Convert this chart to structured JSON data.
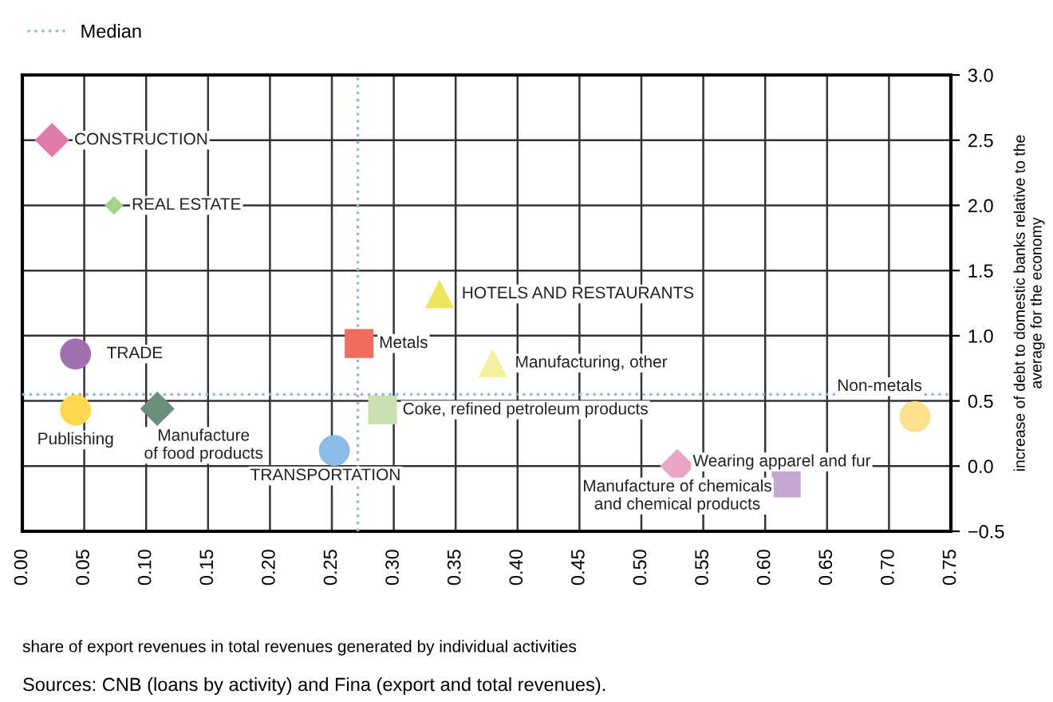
{
  "chart_data": {
    "type": "scatter",
    "xlabel": "share of export revenues in total revenues generated by individual activities",
    "ylabel": "increase of debt to domestic banks relative to the\naverage for the economy",
    "annotations": [
      "Sources: CNB (loans by activity) and Fina (export and total revenues)."
    ],
    "xlim": [
      0,
      0.75
    ],
    "xticks": [
      {
        "value": 0,
        "label": "0.00"
      },
      {
        "value": 0.05,
        "label": "0.05"
      },
      {
        "value": 0.1,
        "label": "0.10"
      },
      {
        "value": 0.15,
        "label": "0.15"
      },
      {
        "value": 0.2,
        "label": "0.20"
      },
      {
        "value": 0.25,
        "label": "0.25"
      },
      {
        "value": 0.3,
        "label": "0.30"
      },
      {
        "value": 0.35,
        "label": "0.35"
      },
      {
        "value": 0.4,
        "label": "0.40"
      },
      {
        "value": 0.45,
        "label": "0.45"
      },
      {
        "value": 0.5,
        "label": "0.50"
      },
      {
        "value": 0.55,
        "label": "0.55"
      },
      {
        "value": 0.6,
        "label": "0.60"
      },
      {
        "value": 0.65,
        "label": "0.65"
      },
      {
        "value": 0.7,
        "label": "0.70"
      },
      {
        "value": 0.75,
        "label": "0.75"
      }
    ],
    "ylim": [
      -0.5,
      3
    ],
    "yticks": [
      {
        "value": -0.5,
        "label": "−0.5"
      },
      {
        "value": 0,
        "label": "0.0"
      },
      {
        "value": 0.5,
        "label": "0.5"
      },
      {
        "value": 1,
        "label": "1.0"
      },
      {
        "value": 1.5,
        "label": "1.5"
      },
      {
        "value": 2,
        "label": "2.0"
      },
      {
        "value": 2.5,
        "label": "2.5"
      },
      {
        "value": 3,
        "label": "3.0"
      }
    ],
    "grid": true,
    "legend": "top left",
    "ref_lines": [
      {
        "axis": "x",
        "value": 0.271,
        "label": "Median",
        "color": "#8fb8e0",
        "line_style": "dotted"
      },
      {
        "axis": "y",
        "value": 0.55,
        "color": "#8fb8e0",
        "line_style": "dotted"
      }
    ],
    "series": [
      {
        "name": "CONSTRUCTION",
        "color": "#e07aa8",
        "marker": "diamond",
        "x": [
          0.024
        ],
        "values": [
          2.5
        ]
      },
      {
        "name": "REAL ESTATE",
        "color": "#a6d38a",
        "marker": "diamond",
        "x": [
          0.074
        ],
        "values": [
          2.0
        ]
      },
      {
        "name": "TRADE",
        "color": "#a070b0",
        "marker": "circle",
        "x": [
          0.043
        ],
        "values": [
          0.86
        ]
      },
      {
        "name": "Publishing",
        "color": "#fdd84e",
        "marker": "circle",
        "x": [
          0.043
        ],
        "values": [
          0.43
        ]
      },
      {
        "name": "Manufacture\nof food products",
        "color": "#6a8f7a",
        "marker": "diamond",
        "x": [
          0.109
        ],
        "values": [
          0.44
        ]
      },
      {
        "name": "TRANSPORTATION",
        "color": "#8cbce6",
        "marker": "circle",
        "x": [
          0.252
        ],
        "values": [
          0.12
        ]
      },
      {
        "name": "Metals",
        "color": "#f26c5e",
        "marker": "square",
        "x": [
          0.272
        ],
        "values": [
          0.94
        ]
      },
      {
        "name": "Coke, refined petroleum products",
        "color": "#c6e0b0",
        "marker": "square",
        "x": [
          0.291
        ],
        "values": [
          0.43
        ]
      },
      {
        "name": "HOTELS AND RESTAURANTS",
        "color": "#ede65a",
        "marker": "triangle",
        "x": [
          0.337
        ],
        "values": [
          1.32
        ]
      },
      {
        "name": "Manufacturing, other",
        "color": "#f3ef9a",
        "marker": "triangle",
        "x": [
          0.38
        ],
        "values": [
          0.79
        ]
      },
      {
        "name": "Manufacture of chemicals\nand chemical products",
        "color": "#eaa4c4",
        "marker": "diamond",
        "x": [
          0.529
        ],
        "values": [
          0.0
        ]
      },
      {
        "name": "Wearing apparel and fur",
        "color": "#c4a4d0",
        "marker": "square",
        "x": [
          0.617
        ],
        "values": [
          -0.13
        ]
      },
      {
        "name": "Non-metals",
        "color": "#fde08e",
        "marker": "circle",
        "x": [
          0.721
        ],
        "values": [
          0.38
        ]
      }
    ]
  }
}
